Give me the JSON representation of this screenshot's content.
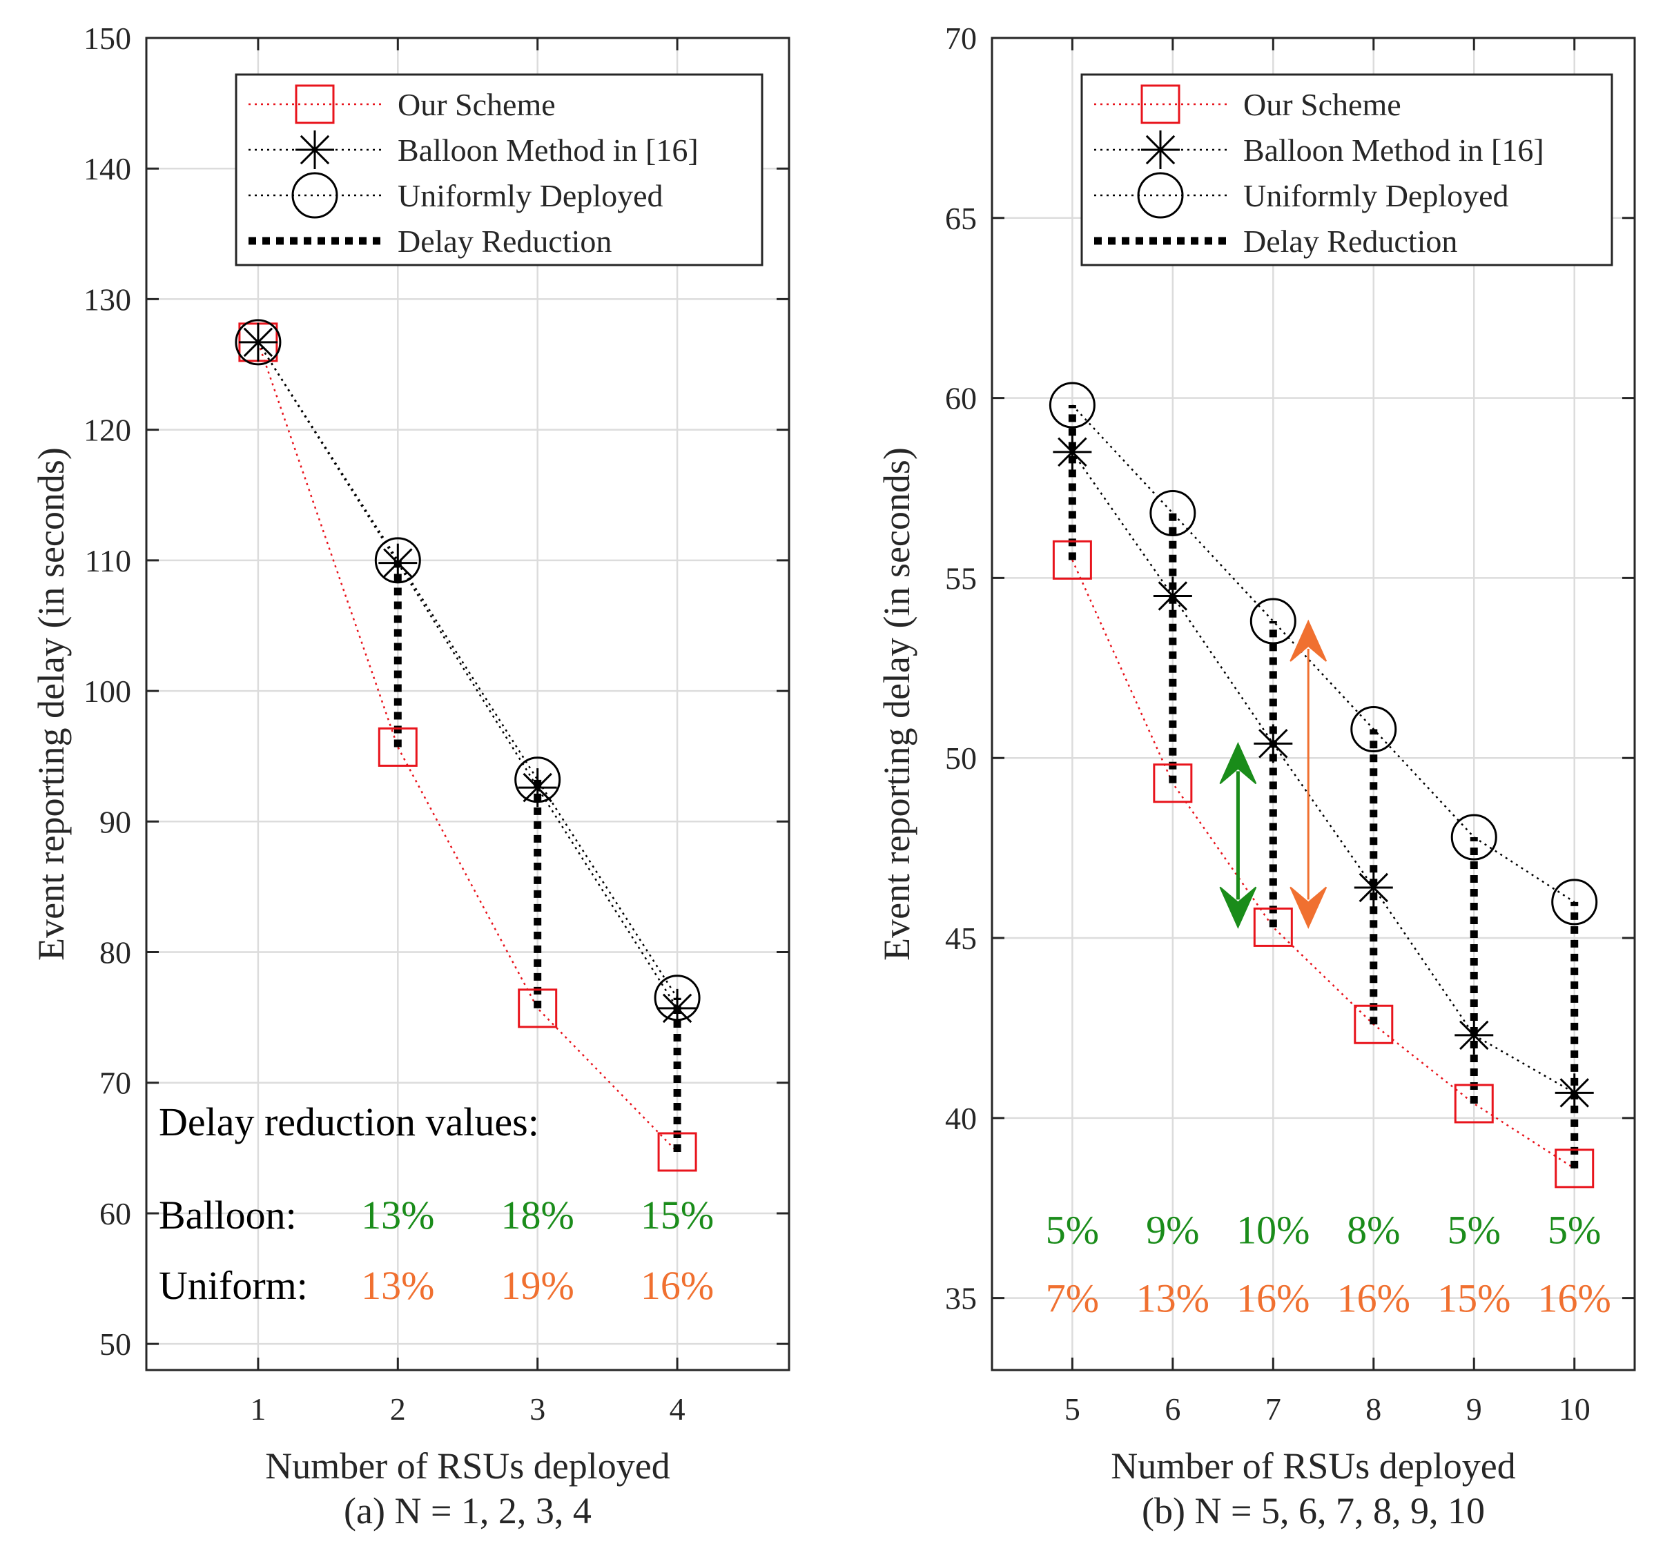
{
  "chart_data": [
    {
      "type": "line",
      "panel": "a",
      "xlabel": "Number of RSUs deployed",
      "ylabel": "Event reporting delay (in seconds)",
      "caption": "(a) N = 1, 2, 3, 4",
      "x": [
        1,
        2,
        3,
        4
      ],
      "xlim": [
        0.2,
        4.8
      ],
      "ylim": [
        48,
        150
      ],
      "xticks": [
        1,
        2,
        3,
        4
      ],
      "yticks": [
        50,
        60,
        70,
        80,
        90,
        100,
        110,
        120,
        130,
        140,
        150
      ],
      "grid": true,
      "legend_position": "top-right",
      "series": [
        {
          "name": "Our Scheme",
          "color": "#e8141c",
          "marker": "square",
          "values": [
            126.7,
            95.7,
            75.7,
            64.7
          ]
        },
        {
          "name": "Balloon Method in [16]",
          "color": "#000000",
          "marker": "asterisk",
          "values": [
            126.7,
            109.8,
            92.6,
            75.7
          ]
        },
        {
          "name": "Uniformly Deployed",
          "color": "#000000",
          "marker": "circle",
          "values": [
            126.7,
            110.0,
            93.2,
            76.5
          ]
        }
      ],
      "reduction_legend": "Delay Reduction",
      "annotation_title": "Delay reduction values:",
      "row_labels": {
        "balloon": "Balloon:",
        "uniform": "Uniform:"
      },
      "balloon_pct": [
        "13%",
        "18%",
        "15%"
      ],
      "uniform_pct": [
        "13%",
        "19%",
        "16%"
      ],
      "pct_x": [
        2,
        3,
        4
      ],
      "pct_y_balloon": 59.9,
      "pct_y_uniform": 54.5
    },
    {
      "type": "line",
      "panel": "b",
      "xlabel": "Number of RSUs deployed",
      "ylabel": "Event reporting delay (in seconds)",
      "caption": "(b) N = 5, 6, 7, 8, 9, 10",
      "x": [
        5,
        6,
        7,
        8,
        9,
        10
      ],
      "xlim": [
        4.2,
        10.6
      ],
      "ylim": [
        33,
        70
      ],
      "xticks": [
        5,
        6,
        7,
        8,
        9,
        10
      ],
      "yticks": [
        35,
        40,
        45,
        50,
        55,
        60,
        65,
        70
      ],
      "grid": true,
      "legend_position": "top-right",
      "series": [
        {
          "name": "Our Scheme",
          "color": "#e8141c",
          "marker": "square",
          "values": [
            55.5,
            49.3,
            45.3,
            42.6,
            40.4,
            38.6
          ]
        },
        {
          "name": "Balloon Method in [16]",
          "color": "#000000",
          "marker": "asterisk",
          "values": [
            58.5,
            54.5,
            50.4,
            46.4,
            42.3,
            40.7
          ]
        },
        {
          "name": "Uniformly Deployed",
          "color": "#000000",
          "marker": "circle",
          "values": [
            59.8,
            56.8,
            53.8,
            50.8,
            47.8,
            46.0
          ]
        }
      ],
      "reduction_legend": "Delay Reduction",
      "balloon_pct": [
        "5%",
        "9%",
        "10%",
        "8%",
        "5%",
        "5%"
      ],
      "uniform_pct": [
        "7%",
        "13%",
        "16%",
        "16%",
        "15%",
        "16%"
      ],
      "pct_x": [
        5,
        6,
        7,
        8,
        9,
        10
      ],
      "pct_y_balloon": 36.9,
      "pct_y_uniform": 35.0,
      "arrows": [
        {
          "x": 6.65,
          "y_from": 50.4,
          "y_to": 45.3,
          "color": "#1a8c1a"
        },
        {
          "x": 7.35,
          "y_from": 53.8,
          "y_to": 45.3,
          "color": "#f07030"
        }
      ]
    }
  ],
  "colors": {
    "balloon_pct": "#1a8c1a",
    "uniform_pct": "#f07030",
    "our_scheme": "#e8141c"
  }
}
